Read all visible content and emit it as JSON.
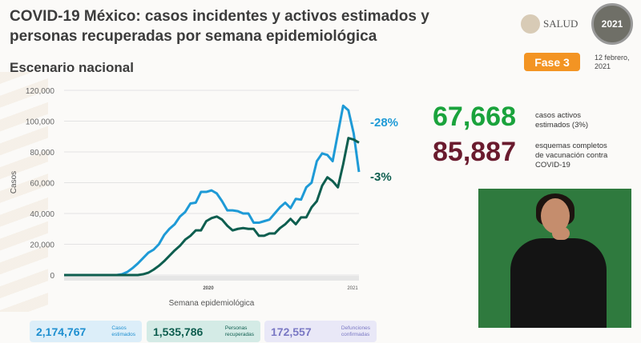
{
  "header": {
    "title_line1": "COVID-19 México: casos incidentes y activos estimados y",
    "title_line2": "personas recuperadas por semana epidemiológica",
    "subtitle": "Escenario nacional",
    "salud": "SALUD",
    "logo_year": "2021",
    "phase": "Fase 3",
    "date_line1": "12 febrero,",
    "date_line2": "2021"
  },
  "kpis": {
    "active": {
      "value": "67,668",
      "label1": "casos activos",
      "label2": "estimados (3%)",
      "color": "#1aa33c"
    },
    "vaccination": {
      "value": "85,887",
      "label1": "esquemas completos",
      "label2": "de vacunación contra",
      "label3": "COVID-19",
      "color": "#6a1b2e"
    }
  },
  "stats": [
    {
      "value": "2,174,767",
      "label1": "Casos",
      "label2": "estimados"
    },
    {
      "value": "1,535,786",
      "label1": "Personas",
      "label2": "recuperadas"
    },
    {
      "value": "172,557",
      "label1": "Defunciones",
      "label2": "confirmadas"
    }
  ],
  "chart_data": {
    "type": "line",
    "ylabel": "Casos",
    "xlabel": "Semana epidemiológica",
    "ylim": [
      0,
      120000
    ],
    "yticks": [
      "0",
      "20,000",
      "40,000",
      "60,000",
      "80,000",
      "100,000",
      "120,000"
    ],
    "year_labels": [
      "2020",
      "2021"
    ],
    "series": [
      {
        "name": "Casos estimados",
        "color": "#1e9ad6",
        "annotation": "-28%",
        "values": [
          0,
          0,
          0,
          0,
          0,
          0,
          0,
          0,
          0,
          0,
          0,
          500,
          2000,
          4500,
          7500,
          11000,
          14500,
          16500,
          20000,
          26000,
          30000,
          33000,
          38000,
          41000,
          46500,
          47000,
          54000,
          54000,
          55000,
          53000,
          48000,
          42000,
          42000,
          41500,
          40000,
          40000,
          34000,
          34000,
          35000,
          36000,
          40000,
          44000,
          47000,
          43500,
          49500,
          49000,
          57000,
          60000,
          74000,
          79000,
          78000,
          74000,
          92000,
          110000,
          107000,
          92000,
          67000
        ]
      },
      {
        "name": "Casos activos",
        "color": "#0e5e4f",
        "annotation": "-3%",
        "values": [
          0,
          0,
          0,
          0,
          0,
          0,
          0,
          0,
          0,
          0,
          0,
          0,
          0,
          0,
          0,
          500,
          1500,
          3500,
          6000,
          9000,
          12500,
          16000,
          19000,
          23000,
          25500,
          29000,
          29000,
          35000,
          37000,
          38000,
          36000,
          32000,
          29000,
          30000,
          30500,
          30000,
          30000,
          25500,
          25500,
          27000,
          27000,
          30500,
          33000,
          36500,
          33000,
          37500,
          37500,
          44000,
          48000,
          58000,
          63500,
          61000,
          57000,
          72000,
          89000,
          88000,
          86000
        ]
      }
    ]
  }
}
